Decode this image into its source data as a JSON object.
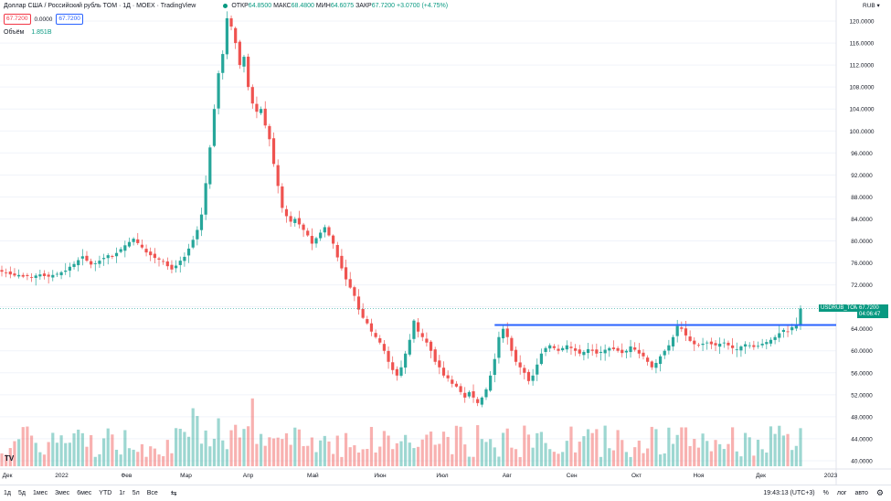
{
  "header": {
    "title": "Доллар США / Российский рубль TOM · 1Д · MOEX · TradingView",
    "ohlc_open_label": "ОТКР",
    "ohlc_open": "64.8500",
    "ohlc_high_label": "МАКС",
    "ohlc_high": "68.4800",
    "ohlc_low_label": "МИН",
    "ohlc_low": "64.6075",
    "ohlc_close_label": "ЗАКР",
    "ohlc_close": "67.7200",
    "change": "+3.0700 (+4.75%)",
    "bid": "67.7200",
    "spread": "0.0000",
    "ask": "67.7200"
  },
  "volume": {
    "label": "Объём",
    "value": "1.851B"
  },
  "currency": "RUB",
  "price_tag": {
    "symbol": "USDRUB_TOM",
    "price": "67.7200",
    "countdown": "04:06:47"
  },
  "bottom": {
    "timeframes": [
      "1д",
      "5д",
      "1мес",
      "3мес",
      "6мес",
      "YTD",
      "1г",
      "5л",
      "Все"
    ],
    "clock": "19:43:13 (UTC+3)",
    "percent": "%",
    "log": "лог",
    "auto": "авто"
  },
  "colors": {
    "up": "#26a69a",
    "down": "#ef5350",
    "level": "#2962ff",
    "grid": "#f0f3fa"
  },
  "chart_data": {
    "type": "candlestick",
    "title": "Доллар США / Российский рубль TOM · 1Д · MOEX",
    "y_ticks": [
      "120.0000",
      "116.0000",
      "112.0000",
      "108.0000",
      "104.0000",
      "100.0000",
      "96.0000",
      "92.0000",
      "88.0000",
      "84.0000",
      "80.0000",
      "76.0000",
      "72.0000",
      "68.0000",
      "64.0000",
      "60.0000",
      "56.0000",
      "52.0000",
      "48.0000",
      "44.0000",
      "40.0000"
    ],
    "ylim": [
      38.5,
      121.5
    ],
    "x_labels": [
      "Дек",
      "2022",
      "Фев",
      "Мар",
      "Апр",
      "Май",
      "Июн",
      "Июл",
      "Авг",
      "Сен",
      "Окт",
      "Ноя",
      "Дек",
      "2023"
    ],
    "horizontal_level": 64.7,
    "last_price": 67.72,
    "close_series": [
      74.4,
      74.2,
      73.9,
      73.7,
      73.8,
      73.5,
      73.6,
      73.4,
      73.7,
      73.9,
      73.6,
      73.5,
      73.8,
      74.0,
      74.3,
      74.6,
      75.3,
      75.8,
      76.5,
      77.2,
      76.4,
      75.7,
      75.9,
      76.4,
      76.9,
      77.4,
      77.1,
      77.8,
      78.5,
      79.2,
      79.8,
      80.4,
      79.6,
      78.8,
      77.9,
      77.4,
      76.9,
      76.6,
      76.2,
      75.4,
      74.8,
      75.5,
      76.4,
      77.1,
      78.6,
      80.2,
      82.0,
      84.8,
      90.5,
      97.0,
      104.0,
      110.5,
      114.0,
      120.5,
      119.0,
      116.0,
      112.0,
      113.5,
      108.0,
      105.0,
      103.5,
      104.0,
      101.0,
      98.5,
      94.0,
      90.0,
      86.0,
      84.5,
      83.5,
      84.0,
      83.0,
      82.0,
      81.0,
      79.5,
      80.5,
      81.5,
      82.5,
      81.0,
      79.5,
      77.0,
      75.0,
      73.0,
      71.5,
      70.0,
      67.5,
      66.0,
      65.0,
      63.5,
      62.5,
      61.5,
      60.0,
      58.0,
      56.5,
      55.5,
      57.0,
      59.5,
      62.0,
      65.5,
      63.5,
      62.5,
      61.5,
      60.0,
      58.0,
      57.0,
      55.5,
      55.0,
      54.0,
      53.5,
      52.5,
      51.5,
      52.5,
      51.5,
      50.5,
      51.5,
      53.0,
      55.5,
      58.5,
      62.5,
      64.0,
      62.5,
      60.0,
      58.0,
      57.0,
      56.0,
      54.5,
      55.5,
      57.5,
      59.5,
      60.5,
      61.0,
      60.5,
      60.0,
      60.5,
      61.0,
      60.5,
      60.0,
      59.5,
      59.8,
      60.3,
      60.0,
      59.5,
      59.8,
      60.2,
      60.5,
      60.3,
      60.0,
      59.6,
      60.0,
      60.8,
      60.2,
      59.5,
      59.0,
      58.0,
      57.0,
      57.8,
      59.0,
      60.0,
      61.0,
      62.5,
      64.5,
      64.0,
      62.8,
      61.8,
      61.2,
      61.0,
      61.3,
      61.5,
      61.2,
      61.0,
      61.3,
      61.5,
      61.0,
      60.5,
      60.3,
      60.8,
      61.2,
      61.0,
      60.7,
      60.9,
      61.3,
      61.6,
      62.0,
      62.5,
      63.2,
      63.8,
      63.5,
      64.3,
      64.8,
      67.7
    ]
  }
}
